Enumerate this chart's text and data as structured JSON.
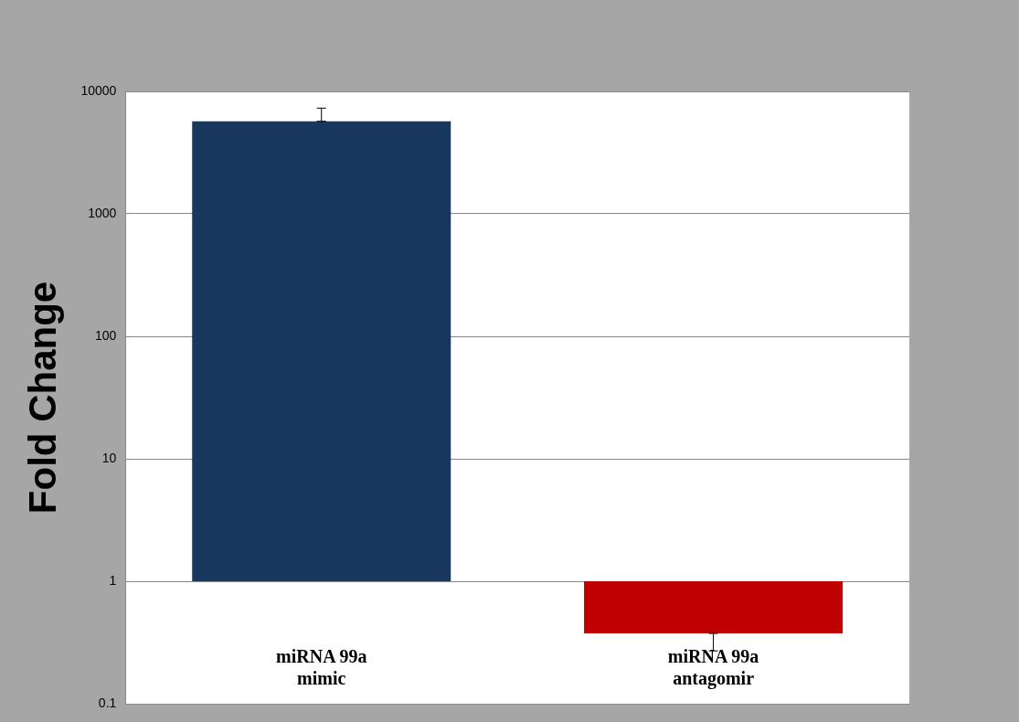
{
  "chart_data": {
    "type": "bar",
    "ylabel": "Fold Change",
    "categories": [
      "miRNA 99a mimic",
      "miRNA 99a antagomir"
    ],
    "base": [
      1,
      1
    ],
    "values": [
      5699,
      -0.625
    ],
    "colors": [
      "#17375e",
      "#c00000"
    ],
    "errors": [
      [
        5700,
        7300
      ],
      [
        0.27,
        0.375
      ]
    ],
    "log": true,
    "ylim": [
      0.1,
      10000
    ],
    "yticks": [
      0.1,
      1,
      10,
      100,
      1000,
      10000
    ],
    "grid": "y",
    "legend": false
  }
}
